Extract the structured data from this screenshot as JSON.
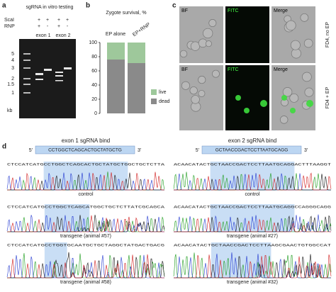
{
  "panel_a": {
    "label": "a",
    "title": "sgRNA in vitro testing",
    "rows": [
      {
        "name": "ScaI",
        "marks": [
          "+",
          "+",
          "+",
          "+"
        ]
      },
      {
        "name": "RNP",
        "marks": [
          "+",
          "-",
          "+",
          "-"
        ]
      }
    ],
    "lanes": [
      "exon 1",
      "exon 2"
    ],
    "ladder": [
      "5",
      "4",
      "3",
      "2",
      "1.5",
      "1"
    ],
    "unit": "kb"
  },
  "chart_data": {
    "type": "bar",
    "stacked": true,
    "panel_label": "b",
    "title": "Zygote survival, %",
    "categories": [
      "EP alone",
      "EP+RNP"
    ],
    "series": [
      {
        "name": "dead",
        "color": "#8a8a8a",
        "values": [
          76,
          71
        ]
      },
      {
        "name": "live",
        "color": "#9ec89b",
        "values": [
          24,
          29
        ]
      }
    ],
    "ylim": [
      0,
      100
    ],
    "yticks": [
      0,
      20,
      40,
      60,
      80,
      100
    ]
  },
  "panel_c": {
    "label": "c",
    "columns": [
      "BF",
      "FITC",
      "Merge"
    ],
    "rows": [
      "FD4, no EP",
      "FD4 + EP"
    ]
  },
  "panel_d": {
    "label": "d",
    "groups": [
      {
        "title": "exon 1 sgRNA bind",
        "prime5": "5'",
        "guide": "CCTGGCTCAGCACTGCTATGCTG",
        "prime3": "3'",
        "traces": [
          {
            "sequence": "CTCCATCATGCCTGGCTCAGCACTGCTATGCTGGCTGCTCTTA",
            "label": "control"
          },
          {
            "sequence": "CTCCATCATGCCTGGCTCAGCATGGCTGCTCTTATCGCAGCA",
            "label": "transgene (animal #57)"
          },
          {
            "sequence": "CTCCATCATGCCTGGTGCAATGCTGCTAGGCTATGACTGACG",
            "label": "transgene (animal #58)"
          }
        ]
      },
      {
        "title": "exon 2 sgRNA bind",
        "prime5": "5'",
        "guide": "GCTAACCGACTCCTTAATGCAGG",
        "prime3": "3'",
        "traces": [
          {
            "sequence": "ACAACATACTGCTAACCGACTCCTTAATGCAGGACTTTAAGGT",
            "label": "control"
          },
          {
            "sequence": "ACAACATACTGCTAACCGACTCCTTAATGCAGGCCAGGGCAGG",
            "label": "transgene (animal #27)"
          },
          {
            "sequence": "ACAACATACTGCTAACCGACTCCTTAAGCGAACTGTGGCCAT",
            "label": "transgene (animal #32)"
          }
        ]
      }
    ]
  }
}
